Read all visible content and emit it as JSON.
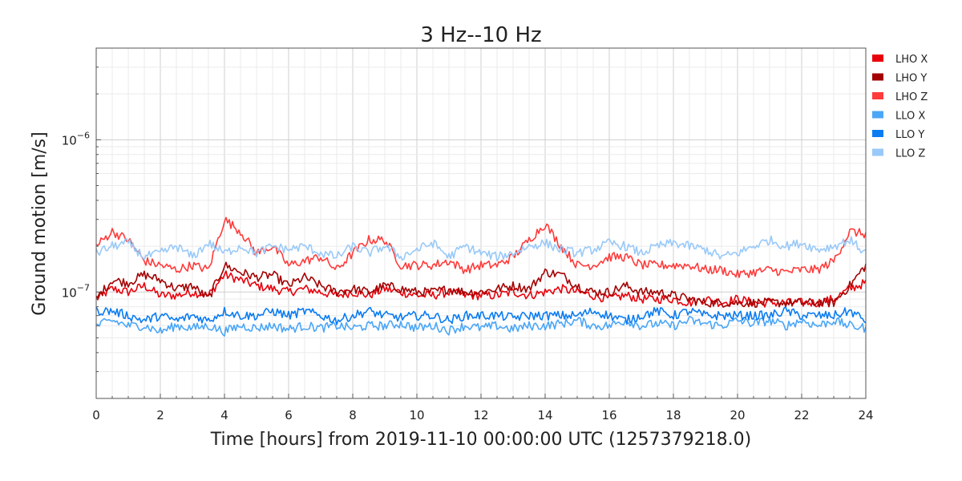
{
  "chart_data": {
    "type": "line",
    "title": "3 Hz--10 Hz",
    "xlabel": "Time [hours] from 2019-11-10 00:00:00 UTC (1257379218.0)",
    "ylabel": "Ground motion [m/s]",
    "xlim": [
      0,
      24
    ],
    "ylim": [
      2e-08,
      4e-06
    ],
    "yscale": "log",
    "grid": true,
    "legend_position": "outside-top-right",
    "x_ticks": [
      0,
      2,
      4,
      6,
      8,
      10,
      12,
      14,
      16,
      18,
      20,
      22,
      24
    ],
    "x_tick_labels": [
      "0",
      "2",
      "4",
      "6",
      "8",
      "10",
      "12",
      "14",
      "16",
      "18",
      "20",
      "22",
      "24"
    ],
    "y_ticks": [
      {
        "value": 1e-07,
        "base": "10",
        "exp": "−7"
      },
      {
        "value": 1e-06,
        "base": "10",
        "exp": "−6"
      }
    ],
    "x_step": 0.5,
    "series": [
      {
        "name": "LHO X",
        "color": "#e8000b",
        "values": [
          9e-08,
          1.05e-07,
          1e-07,
          1.1e-07,
          9.5e-08,
          9.5e-08,
          1e-07,
          9.5e-08,
          1.3e-07,
          1.2e-07,
          1.1e-07,
          1.05e-07,
          1e-07,
          1.05e-07,
          1e-07,
          9.5e-08,
          1e-07,
          9.5e-08,
          1.05e-07,
          1e-07,
          9.5e-08,
          9.5e-08,
          1e-07,
          9.5e-08,
          9.5e-08,
          9.5e-08,
          1e-07,
          9.5e-08,
          1e-07,
          1.05e-07,
          1e-07,
          9.5e-08,
          9e-08,
          9.5e-08,
          9e-08,
          9e-08,
          9e-08,
          8.5e-08,
          9e-08,
          8.5e-08,
          9e-08,
          8.5e-08,
          8.5e-08,
          8.5e-08,
          8.5e-08,
          8.5e-08,
          9e-08,
          1.05e-07,
          1.15e-07
        ]
      },
      {
        "name": "LHO Y",
        "color": "#a30000",
        "values": [
          9e-08,
          1.2e-07,
          1.15e-07,
          1.3e-07,
          1.2e-07,
          1.05e-07,
          1.1e-07,
          9e-08,
          1.5e-07,
          1.35e-07,
          1.25e-07,
          1.3e-07,
          1.1e-07,
          1.25e-07,
          1.1e-07,
          1e-07,
          1.05e-07,
          1e-07,
          1.1e-07,
          1.05e-07,
          1e-07,
          1e-07,
          1.05e-07,
          1e-07,
          1e-07,
          1.05e-07,
          1.1e-07,
          1.05e-07,
          1.35e-07,
          1.3e-07,
          1.1e-07,
          1e-07,
          1e-07,
          1.1e-07,
          1e-07,
          1e-07,
          9.5e-08,
          9e-08,
          8.5e-08,
          8.5e-08,
          8.5e-08,
          8.5e-08,
          8.5e-08,
          8.5e-08,
          8.5e-08,
          8.5e-08,
          8.5e-08,
          1.1e-07,
          1.5e-07
        ]
      },
      {
        "name": "LHO Z",
        "color": "#ff3b3b",
        "values": [
          2e-07,
          2.5e-07,
          2.2e-07,
          1.6e-07,
          1.5e-07,
          1.4e-07,
          1.5e-07,
          1.4e-07,
          3e-07,
          2.5e-07,
          1.8e-07,
          2e-07,
          1.5e-07,
          1.6e-07,
          1.7e-07,
          1.4e-07,
          1.8e-07,
          2.2e-07,
          2.2e-07,
          1.5e-07,
          1.5e-07,
          1.5e-07,
          1.6e-07,
          1.4e-07,
          1.5e-07,
          1.5e-07,
          1.7e-07,
          2.2e-07,
          2.8e-07,
          2e-07,
          1.5e-07,
          1.5e-07,
          1.7e-07,
          1.7e-07,
          1.5e-07,
          1.5e-07,
          1.5e-07,
          1.5e-07,
          1.4e-07,
          1.4e-07,
          1.3e-07,
          1.35e-07,
          1.4e-07,
          1.35e-07,
          1.4e-07,
          1.4e-07,
          1.6e-07,
          2.5e-07,
          2.4e-07
        ]
      },
      {
        "name": "LLO X",
        "color": "#4ba6f7",
        "values": [
          6e-08,
          6.5e-08,
          6e-08,
          6e-08,
          5.5e-08,
          6e-08,
          5.8e-08,
          6e-08,
          5.5e-08,
          6e-08,
          5.8e-08,
          6e-08,
          5.7e-08,
          6e-08,
          5.8e-08,
          6e-08,
          5.8e-08,
          6e-08,
          6e-08,
          6.2e-08,
          5.8e-08,
          6e-08,
          5.6e-08,
          6e-08,
          5.8e-08,
          6e-08,
          5.7e-08,
          6e-08,
          6e-08,
          6.2e-08,
          6.5e-08,
          6e-08,
          6e-08,
          6.5e-08,
          6e-08,
          6.2e-08,
          6e-08,
          6.5e-08,
          6.2e-08,
          6e-08,
          6.5e-08,
          6.2e-08,
          6.5e-08,
          6e-08,
          6.5e-08,
          6e-08,
          6.5e-08,
          6e-08,
          5.8e-08
        ]
      },
      {
        "name": "LLO Y",
        "color": "#0a7cf2",
        "values": [
          7.5e-08,
          7.5e-08,
          7e-08,
          6.5e-08,
          7e-08,
          6.5e-08,
          7e-08,
          6.5e-08,
          7.5e-08,
          7e-08,
          7e-08,
          7.5e-08,
          7e-08,
          7.5e-08,
          7e-08,
          6.5e-08,
          7e-08,
          7.5e-08,
          7e-08,
          6.8e-08,
          7e-08,
          7e-08,
          6.5e-08,
          7e-08,
          7e-08,
          7e-08,
          6.8e-08,
          7e-08,
          7e-08,
          7e-08,
          7e-08,
          7.5e-08,
          7e-08,
          6.5e-08,
          7e-08,
          7.5e-08,
          7e-08,
          7.5e-08,
          7e-08,
          7e-08,
          7e-08,
          7e-08,
          7e-08,
          7.5e-08,
          7e-08,
          7e-08,
          7e-08,
          7.5e-08,
          6.5e-08
        ]
      },
      {
        "name": "LLO Z",
        "color": "#99c9f9",
        "values": [
          1.8e-07,
          2e-07,
          2.1e-07,
          1.7e-07,
          1.8e-07,
          2e-07,
          1.7e-07,
          2.1e-07,
          1.8e-07,
          2e-07,
          1.8e-07,
          2e-07,
          1.9e-07,
          2e-07,
          1.8e-07,
          1.7e-07,
          2e-07,
          1.8e-07,
          2e-07,
          1.7e-07,
          1.9e-07,
          2.1e-07,
          1.7e-07,
          2e-07,
          1.8e-07,
          1.7e-07,
          1.8e-07,
          2e-07,
          2.1e-07,
          1.9e-07,
          1.8e-07,
          1.9e-07,
          2.1e-07,
          2e-07,
          1.8e-07,
          2e-07,
          2.1e-07,
          2e-07,
          1.9e-07,
          1.7e-07,
          1.8e-07,
          2e-07,
          2.2e-07,
          2e-07,
          2.1e-07,
          1.9e-07,
          2e-07,
          2.2e-07,
          1.8e-07
        ]
      }
    ]
  }
}
